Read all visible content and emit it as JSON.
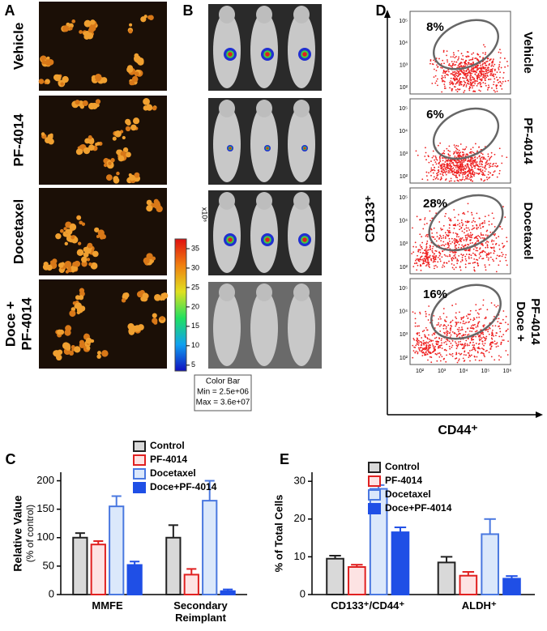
{
  "panels": {
    "A": {
      "label": "A",
      "rows": [
        [
          "Vehicle"
        ],
        [
          "PF-4014"
        ],
        [
          "Docetaxel"
        ],
        [
          "Doce +",
          "PF-4014"
        ]
      ]
    },
    "B": {
      "label": "B",
      "colorbar_ticks": [
        5,
        10,
        15,
        20,
        25,
        30,
        35
      ],
      "colorbar_unit": "x10⁶",
      "colorbar_title": "Color Bar",
      "colorbar_min": "Min = 2.5e+06",
      "colorbar_max": "Max = 3.6e+07"
    },
    "D": {
      "label": "D",
      "rows": [
        [
          "Vehicle"
        ],
        [
          "PF-4014"
        ],
        [
          "Docetaxel"
        ],
        [
          "Doce +",
          "PF-4014"
        ]
      ],
      "percents": [
        "8%",
        "6%",
        "28%",
        "16%"
      ],
      "y_label": "CD133⁺",
      "x_label": "CD44⁺",
      "flow_ticks": [
        "10²",
        "10³",
        "10⁴",
        "10⁵",
        "10⁶"
      ]
    }
  },
  "chart_data": [
    {
      "type": "bar",
      "panel": "C",
      "y_label": "Relative Value",
      "y_sublabel": "(% of control)",
      "categories": [
        "MMFE",
        "Secondary Reimplant"
      ],
      "ylim": [
        0,
        215
      ],
      "yticks": [
        0,
        50,
        100,
        150,
        200
      ],
      "series": [
        {
          "name": "Control",
          "color": "#d9d9d9",
          "edge": "#222222",
          "values": [
            100,
            100
          ],
          "errors": [
            8,
            22
          ]
        },
        {
          "name": "PF-4014",
          "color": "#fde3e3",
          "edge": "#e02020",
          "values": [
            88,
            35
          ],
          "errors": [
            6,
            10
          ]
        },
        {
          "name": "Docetaxel",
          "color": "#dbe8fb",
          "edge": "#4a78e0",
          "values": [
            155,
            165
          ],
          "errors": [
            18,
            35
          ]
        },
        {
          "name": "Doce+PF-4014",
          "color": "#1f4fe6",
          "edge": "#1f4fe6",
          "values": [
            52,
            6
          ],
          "errors": [
            6,
            3
          ]
        }
      ]
    },
    {
      "type": "bar",
      "panel": "E",
      "y_label": "% of Total Cells",
      "categories": [
        "CD133⁺/CD44⁺",
        "ALDH⁺"
      ],
      "ylim": [
        0,
        32.4
      ],
      "yticks": [
        0,
        10,
        20,
        30
      ],
      "series": [
        {
          "name": "Control",
          "color": "#d9d9d9",
          "edge": "#222222",
          "values": [
            9.5,
            8.5
          ],
          "errors": [
            0.8,
            1.5
          ]
        },
        {
          "name": "PF-4014",
          "color": "#fde3e3",
          "edge": "#e02020",
          "values": [
            7.3,
            5
          ],
          "errors": [
            0.6,
            1
          ]
        },
        {
          "name": "Docetaxel",
          "color": "#dbe8fb",
          "edge": "#4a78e0",
          "values": [
            28,
            16
          ],
          "errors": [
            1,
            4
          ]
        },
        {
          "name": "Doce+PF-4014",
          "color": "#1f4fe6",
          "edge": "#1f4fe6",
          "values": [
            16.5,
            4.2
          ],
          "errors": [
            1.3,
            0.7
          ]
        }
      ]
    }
  ]
}
